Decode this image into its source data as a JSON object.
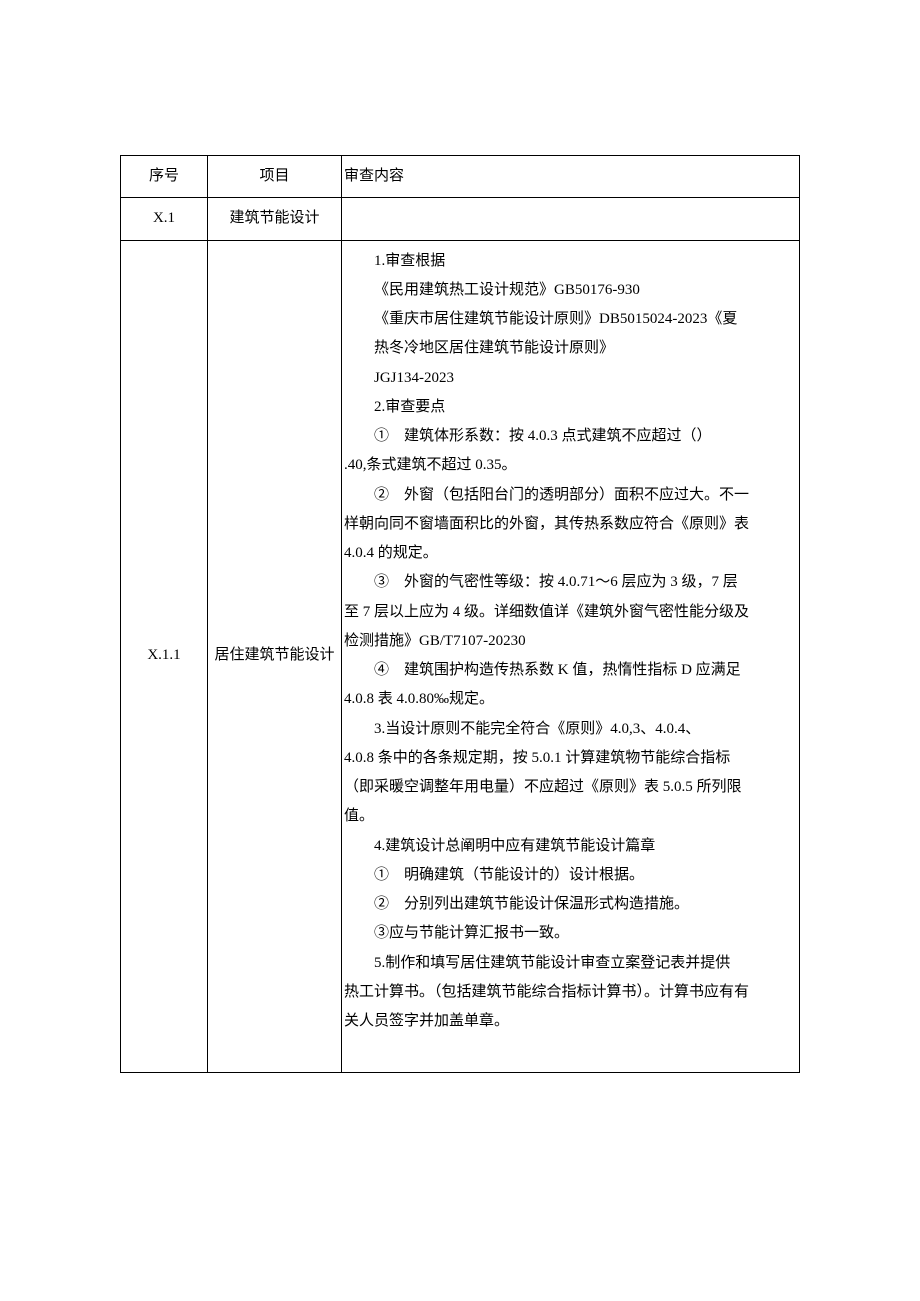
{
  "header": {
    "seq": "序号",
    "proj": "项目",
    "content": "审查内容"
  },
  "rows": [
    {
      "seq": "X.1",
      "proj": "建筑节能设计",
      "content": ""
    },
    {
      "seq": "X.1.1",
      "proj": "居住建筑节能设计",
      "lines": [
        {
          "cls": "indent",
          "text": "1.审查根据"
        },
        {
          "cls": "indent-sub",
          "text": "《民用建筑热工设计规范》GB50176-930"
        },
        {
          "cls": "indent-sub",
          "text": "《重庆市居住建筑节能设计原则》DB5015024-2023《夏"
        },
        {
          "cls": "indent-sub",
          "text": "热冬冷地区居住建筑节能设计原则》"
        },
        {
          "cls": "indent-sub",
          "text": "JGJ134-2023"
        },
        {
          "cls": "indent",
          "text": "2.审查要点"
        },
        {
          "cls": "indent",
          "text": "①　建筑体形系数：按 4.0.3 点式建筑不应超过（）"
        },
        {
          "cls": "noindent",
          "text": ".40,条式建筑不超过 0.35。"
        },
        {
          "cls": "indent",
          "text": "②　外窗（包括阳台门的透明部分）面积不应过大。不一"
        },
        {
          "cls": "noindent",
          "text": "样朝向同不窗墙面积比的外窗，其传热系数应符合《原则》表"
        },
        {
          "cls": "noindent",
          "text": "4.0.4 的规定。"
        },
        {
          "cls": "indent",
          "text": "③　外窗的气密性等级：按 4.0.71～6 层应为 3 级，7 层"
        },
        {
          "cls": "noindent",
          "text": "至 7 层以上应为 4 级。详细数值详《建筑外窗气密性能分级及"
        },
        {
          "cls": "noindent",
          "text": "检测措施》GB/T7107-20230"
        },
        {
          "cls": "indent",
          "text": "④　建筑围护构造传热系数 K 值，热惰性指标 D 应满足"
        },
        {
          "cls": "noindent",
          "text": "4.0.8 表 4.0.80‰规定。"
        },
        {
          "cls": "indent",
          "text": "3.当设计原则不能完全符合《原则》4.0,3、4.0.4、"
        },
        {
          "cls": "noindent",
          "text": "4.0.8 条中的各条规定期，按 5.0.1 计算建筑物节能综合指标"
        },
        {
          "cls": "noindent",
          "text": "（即采暖空调整年用电量）不应超过《原则》表 5.0.5 所列限"
        },
        {
          "cls": "noindent",
          "text": "值。"
        },
        {
          "cls": "indent",
          "text": "4.建筑设计总阐明中应有建筑节能设计篇章"
        },
        {
          "cls": "indent",
          "text": "①　明确建筑（节能设计的）设计根据。"
        },
        {
          "cls": "indent",
          "text": "②　分别列出建筑节能设计保温形式构造措施。"
        },
        {
          "cls": "indent",
          "text": "③应与节能计算汇报书一致。"
        },
        {
          "cls": "indent",
          "text": "5.制作和填写居住建筑节能设计审查立案登记表并提供"
        },
        {
          "cls": "noindent",
          "text": "热工计算书。（包括建筑节能综合指标计算书）。计算书应有有"
        },
        {
          "cls": "noindent",
          "text": "关人员签字并加盖单章。"
        },
        {
          "cls": "noindent",
          "text": " "
        }
      ]
    }
  ]
}
